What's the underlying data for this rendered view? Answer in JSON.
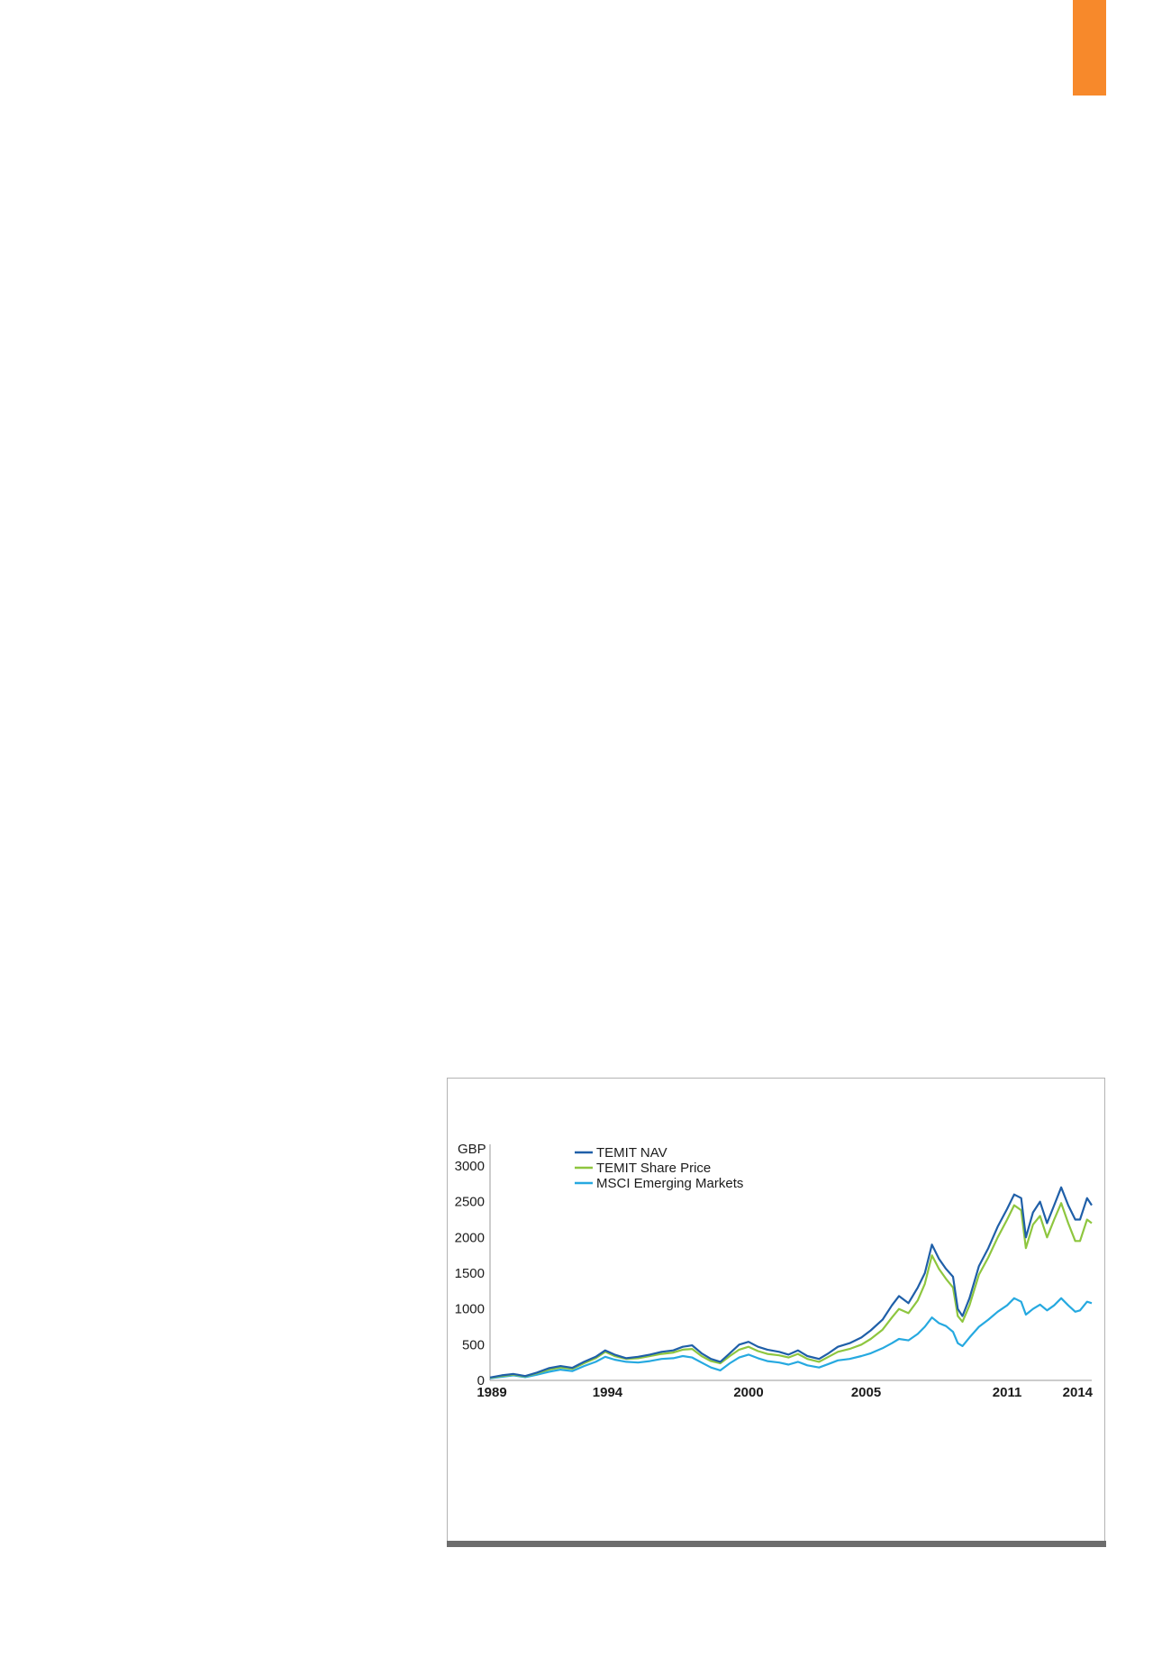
{
  "page": {
    "accent_color": "#f7892b"
  },
  "chart_data": {
    "type": "line",
    "ylabel": "GBP",
    "ylim": [
      0,
      3000
    ],
    "yticks": [
      0,
      500,
      1000,
      1500,
      2000,
      2500,
      3000
    ],
    "xlim": [
      1989,
      2014.6
    ],
    "xticks": [
      1989,
      1994,
      2000,
      2005,
      2011,
      2014
    ],
    "grid": false,
    "legend_position": "top-left",
    "series": [
      {
        "name": "TEMIT NAV",
        "color": "#1f5fa8",
        "points": [
          [
            1989.0,
            40
          ],
          [
            1989.5,
            70
          ],
          [
            1990.0,
            90
          ],
          [
            1990.5,
            60
          ],
          [
            1991.0,
            110
          ],
          [
            1991.5,
            170
          ],
          [
            1992.0,
            200
          ],
          [
            1992.5,
            175
          ],
          [
            1993.0,
            260
          ],
          [
            1993.5,
            330
          ],
          [
            1993.9,
            420
          ],
          [
            1994.3,
            360
          ],
          [
            1994.8,
            310
          ],
          [
            1995.3,
            330
          ],
          [
            1995.8,
            360
          ],
          [
            1996.3,
            400
          ],
          [
            1996.8,
            420
          ],
          [
            1997.2,
            470
          ],
          [
            1997.6,
            490
          ],
          [
            1998.0,
            380
          ],
          [
            1998.4,
            300
          ],
          [
            1998.8,
            260
          ],
          [
            1999.2,
            380
          ],
          [
            1999.6,
            500
          ],
          [
            2000.0,
            540
          ],
          [
            2000.4,
            470
          ],
          [
            2000.8,
            430
          ],
          [
            2001.3,
            400
          ],
          [
            2001.7,
            360
          ],
          [
            2002.1,
            420
          ],
          [
            2002.5,
            340
          ],
          [
            2003.0,
            300
          ],
          [
            2003.4,
            380
          ],
          [
            2003.8,
            470
          ],
          [
            2004.3,
            520
          ],
          [
            2004.8,
            600
          ],
          [
            2005.2,
            700
          ],
          [
            2005.7,
            850
          ],
          [
            2006.1,
            1050
          ],
          [
            2006.4,
            1180
          ],
          [
            2006.8,
            1080
          ],
          [
            2007.2,
            1300
          ],
          [
            2007.5,
            1500
          ],
          [
            2007.8,
            1900
          ],
          [
            2008.1,
            1700
          ],
          [
            2008.4,
            1560
          ],
          [
            2008.7,
            1450
          ],
          [
            2008.9,
            1000
          ],
          [
            2009.1,
            900
          ],
          [
            2009.4,
            1150
          ],
          [
            2009.8,
            1600
          ],
          [
            2010.2,
            1850
          ],
          [
            2010.6,
            2150
          ],
          [
            2011.0,
            2400
          ],
          [
            2011.3,
            2600
          ],
          [
            2011.6,
            2550
          ],
          [
            2011.8,
            2000
          ],
          [
            2012.1,
            2350
          ],
          [
            2012.4,
            2500
          ],
          [
            2012.7,
            2200
          ],
          [
            2013.0,
            2450
          ],
          [
            2013.3,
            2700
          ],
          [
            2013.6,
            2450
          ],
          [
            2013.9,
            2250
          ],
          [
            2014.1,
            2250
          ],
          [
            2014.4,
            2550
          ],
          [
            2014.6,
            2450
          ]
        ]
      },
      {
        "name": "TEMIT Share Price",
        "color": "#8ec63f",
        "points": [
          [
            1989.0,
            35
          ],
          [
            1989.5,
            60
          ],
          [
            1990.0,
            80
          ],
          [
            1990.5,
            55
          ],
          [
            1991.0,
            100
          ],
          [
            1991.5,
            150
          ],
          [
            1992.0,
            180
          ],
          [
            1992.5,
            160
          ],
          [
            1993.0,
            240
          ],
          [
            1993.5,
            310
          ],
          [
            1993.9,
            400
          ],
          [
            1994.3,
            340
          ],
          [
            1994.8,
            300
          ],
          [
            1995.3,
            310
          ],
          [
            1995.8,
            340
          ],
          [
            1996.3,
            370
          ],
          [
            1996.8,
            390
          ],
          [
            1997.2,
            430
          ],
          [
            1997.6,
            440
          ],
          [
            1998.0,
            340
          ],
          [
            1998.4,
            270
          ],
          [
            1998.8,
            240
          ],
          [
            1999.2,
            340
          ],
          [
            1999.6,
            430
          ],
          [
            2000.0,
            470
          ],
          [
            2000.4,
            410
          ],
          [
            2000.8,
            370
          ],
          [
            2001.3,
            350
          ],
          [
            2001.7,
            320
          ],
          [
            2002.1,
            370
          ],
          [
            2002.5,
            300
          ],
          [
            2003.0,
            260
          ],
          [
            2003.4,
            330
          ],
          [
            2003.8,
            400
          ],
          [
            2004.3,
            440
          ],
          [
            2004.8,
            500
          ],
          [
            2005.2,
            580
          ],
          [
            2005.7,
            710
          ],
          [
            2006.1,
            880
          ],
          [
            2006.4,
            1000
          ],
          [
            2006.8,
            940
          ],
          [
            2007.2,
            1120
          ],
          [
            2007.5,
            1350
          ],
          [
            2007.8,
            1750
          ],
          [
            2008.1,
            1560
          ],
          [
            2008.4,
            1420
          ],
          [
            2008.7,
            1300
          ],
          [
            2008.9,
            900
          ],
          [
            2009.1,
            820
          ],
          [
            2009.4,
            1050
          ],
          [
            2009.8,
            1480
          ],
          [
            2010.2,
            1720
          ],
          [
            2010.6,
            2000
          ],
          [
            2011.0,
            2250
          ],
          [
            2011.3,
            2450
          ],
          [
            2011.6,
            2380
          ],
          [
            2011.8,
            1850
          ],
          [
            2012.1,
            2180
          ],
          [
            2012.4,
            2300
          ],
          [
            2012.7,
            2000
          ],
          [
            2013.0,
            2250
          ],
          [
            2013.3,
            2480
          ],
          [
            2013.6,
            2200
          ],
          [
            2013.9,
            1950
          ],
          [
            2014.1,
            1950
          ],
          [
            2014.4,
            2250
          ],
          [
            2014.6,
            2200
          ]
        ]
      },
      {
        "name": "MSCI Emerging Markets",
        "color": "#26a9e0",
        "points": [
          [
            1989.0,
            30
          ],
          [
            1989.5,
            50
          ],
          [
            1990.0,
            70
          ],
          [
            1990.5,
            45
          ],
          [
            1991.0,
            80
          ],
          [
            1991.5,
            120
          ],
          [
            1992.0,
            150
          ],
          [
            1992.5,
            130
          ],
          [
            1993.0,
            200
          ],
          [
            1993.5,
            260
          ],
          [
            1993.9,
            330
          ],
          [
            1994.3,
            290
          ],
          [
            1994.8,
            260
          ],
          [
            1995.3,
            250
          ],
          [
            1995.8,
            270
          ],
          [
            1996.3,
            300
          ],
          [
            1996.8,
            310
          ],
          [
            1997.2,
            340
          ],
          [
            1997.6,
            320
          ],
          [
            1998.0,
            250
          ],
          [
            1998.4,
            180
          ],
          [
            1998.8,
            140
          ],
          [
            1999.2,
            240
          ],
          [
            1999.6,
            320
          ],
          [
            2000.0,
            360
          ],
          [
            2000.4,
            310
          ],
          [
            2000.8,
            270
          ],
          [
            2001.3,
            250
          ],
          [
            2001.7,
            220
          ],
          [
            2002.1,
            260
          ],
          [
            2002.5,
            210
          ],
          [
            2003.0,
            180
          ],
          [
            2003.4,
            230
          ],
          [
            2003.8,
            280
          ],
          [
            2004.3,
            300
          ],
          [
            2004.8,
            340
          ],
          [
            2005.2,
            380
          ],
          [
            2005.7,
            450
          ],
          [
            2006.1,
            520
          ],
          [
            2006.4,
            580
          ],
          [
            2006.8,
            560
          ],
          [
            2007.2,
            650
          ],
          [
            2007.5,
            750
          ],
          [
            2007.8,
            880
          ],
          [
            2008.1,
            800
          ],
          [
            2008.4,
            760
          ],
          [
            2008.7,
            680
          ],
          [
            2008.9,
            520
          ],
          [
            2009.1,
            480
          ],
          [
            2009.4,
            600
          ],
          [
            2009.8,
            750
          ],
          [
            2010.2,
            850
          ],
          [
            2010.6,
            960
          ],
          [
            2011.0,
            1050
          ],
          [
            2011.3,
            1150
          ],
          [
            2011.6,
            1100
          ],
          [
            2011.8,
            920
          ],
          [
            2012.1,
            1000
          ],
          [
            2012.4,
            1060
          ],
          [
            2012.7,
            980
          ],
          [
            2013.0,
            1050
          ],
          [
            2013.3,
            1150
          ],
          [
            2013.6,
            1050
          ],
          [
            2013.9,
            960
          ],
          [
            2014.1,
            980
          ],
          [
            2014.4,
            1100
          ],
          [
            2014.6,
            1080
          ]
        ]
      }
    ]
  }
}
